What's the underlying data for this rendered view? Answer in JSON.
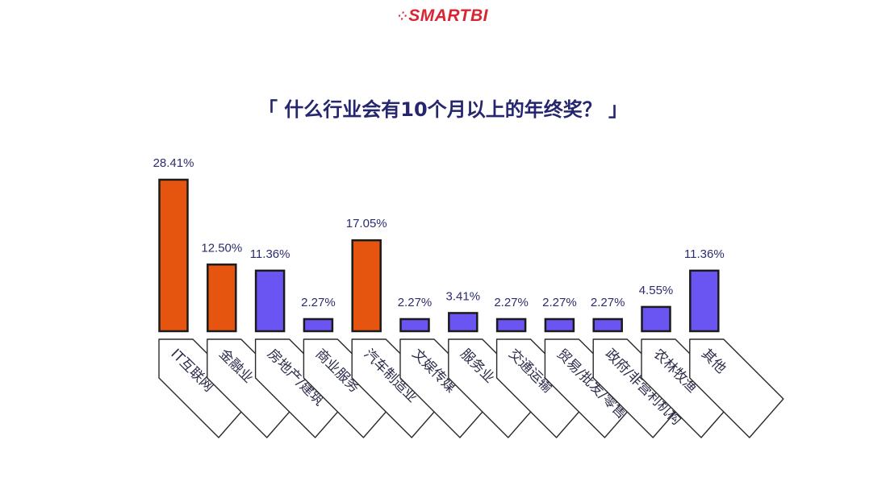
{
  "brand": {
    "logo_text": "SMARTBI",
    "logo_mark": "⁘"
  },
  "chart_data": {
    "type": "bar",
    "title": "「 什么行业会有10个月以上的年终奖？ 」",
    "categories": [
      "IT互联网",
      "金融业",
      "房地产/建筑",
      "商业服务",
      "汽车制造业",
      "文娱传媒",
      "服务业",
      "交通运输",
      "贸易/批发/零售",
      "政府/非营利机构",
      "农林牧渔",
      "其他"
    ],
    "values": [
      28.41,
      12.5,
      11.36,
      2.27,
      17.05,
      2.27,
      3.41,
      2.27,
      2.27,
      2.27,
      4.55,
      11.36
    ],
    "labels": [
      "28.41%",
      "12.50%",
      "11.36%",
      "2.27%",
      "17.05%",
      "2.27%",
      "3.41%",
      "2.27%",
      "2.27%",
      "2.27%",
      "4.55%",
      "11.36%"
    ],
    "highlight": [
      true,
      true,
      false,
      false,
      true,
      false,
      false,
      false,
      false,
      false,
      false,
      false
    ],
    "colors": {
      "highlight": "#e6550f",
      "normal": "#6a54f2",
      "stroke": "#1b1b1b",
      "label": "#2c2c6e",
      "category_text": "#2b2b4a"
    },
    "xlabel": "",
    "ylabel": "",
    "ylim": [
      0,
      28.41
    ],
    "grid": false,
    "legend": "none"
  }
}
